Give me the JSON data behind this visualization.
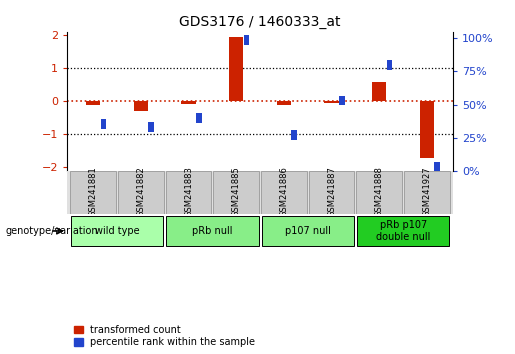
{
  "title": "GDS3176 / 1460333_at",
  "samples": [
    "GSM241881",
    "GSM241882",
    "GSM241883",
    "GSM241885",
    "GSM241886",
    "GSM241887",
    "GSM241888",
    "GSM241927"
  ],
  "red_values": [
    -0.12,
    -0.3,
    -0.07,
    1.93,
    -0.12,
    -0.05,
    0.58,
    -1.73
  ],
  "blue_values_pct": [
    35,
    33,
    40,
    99,
    27,
    53,
    80,
    3
  ],
  "groups": [
    {
      "label": "wild type",
      "start": 0,
      "end": 1,
      "color": "#aaffaa"
    },
    {
      "label": "pRb null",
      "start": 2,
      "end": 3,
      "color": "#88ee88"
    },
    {
      "label": "p107 null",
      "start": 4,
      "end": 5,
      "color": "#88ee88"
    },
    {
      "label": "pRb p107\ndouble null",
      "start": 6,
      "end": 7,
      "color": "#22cc22"
    }
  ],
  "ylim_left": [
    -2.1,
    2.1
  ],
  "ylim_right": [
    0,
    105
  ],
  "right_ticks": [
    0,
    25,
    50,
    75,
    100
  ],
  "right_tick_labels": [
    "0%",
    "25%",
    "50%",
    "75%",
    "100%"
  ],
  "left_ticks": [
    -2,
    -1,
    0,
    1,
    2
  ],
  "red_bar_width": 0.3,
  "blue_bar_width": 0.12,
  "blue_bar_height": 0.15,
  "red_color": "#cc2200",
  "blue_color": "#2244cc",
  "zero_line_color": "#cc2200",
  "background_chart": "#ffffff",
  "sample_box_color": "#cccccc",
  "sample_box_edge": "#999999"
}
